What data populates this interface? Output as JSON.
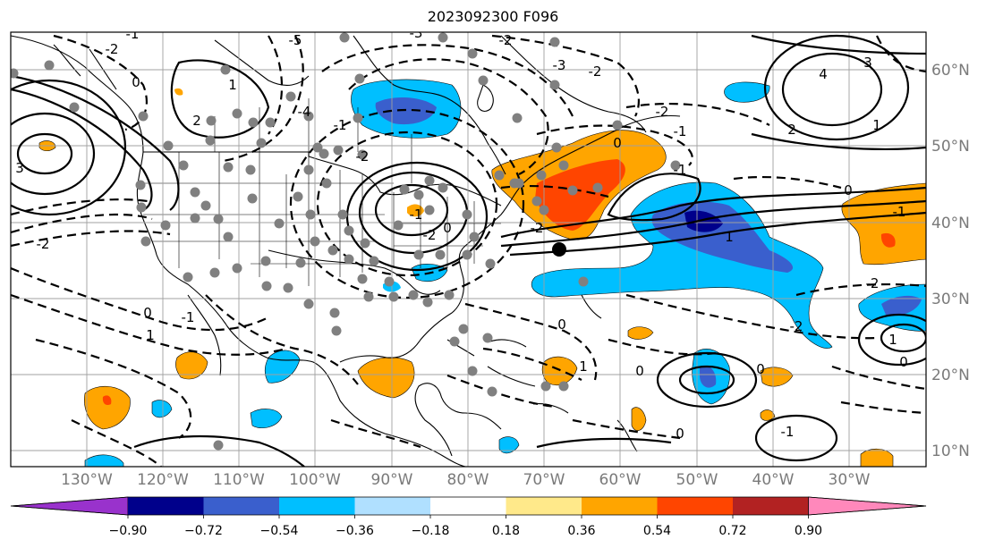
{
  "title": "2023092300 F096",
  "longitude_labels": [
    "130°W",
    "120°W",
    "110°W",
    "100°W",
    "90°W",
    "80°W",
    "70°W",
    "60°W",
    "50°W",
    "40°W",
    "30°W"
  ],
  "latitude_labels": [
    "60°N",
    "50°N",
    "40°N",
    "30°N",
    "20°N",
    "10°N"
  ],
  "colorbar": {
    "labels": [
      "−0.90",
      "−0.72",
      "−0.54",
      "−0.36",
      "−0.18",
      "0.18",
      "0.36",
      "0.54",
      "0.72",
      "0.90"
    ],
    "colors": [
      "#9932cc",
      "#00008b",
      "#3a5fcd",
      "#00bfff",
      "#b0e0ff",
      "#ffffff",
      "#ffe98a",
      "#ffa500",
      "#ff4500",
      "#b22222",
      "#ff88bb"
    ]
  },
  "contour_labels": [
    "-1",
    "-2",
    "-3",
    "-2",
    "0",
    "-1",
    "-2",
    "-3",
    "-4",
    "-5",
    "3",
    "0",
    "-2",
    "2",
    "1",
    "-1",
    "-2",
    "-1",
    "0",
    "-2",
    "-1",
    "4",
    "3",
    "2",
    "1",
    "0",
    "-1",
    "-2",
    "-2",
    "1",
    "0",
    "1",
    "0",
    "0",
    "-1",
    "0",
    "1",
    "0",
    "-2",
    "-1",
    "1",
    "0",
    "-2"
  ],
  "colors": {
    "land_outline": "#000000",
    "grid": "#a0a0a0",
    "dot": "#808080",
    "marker": "#000000"
  }
}
